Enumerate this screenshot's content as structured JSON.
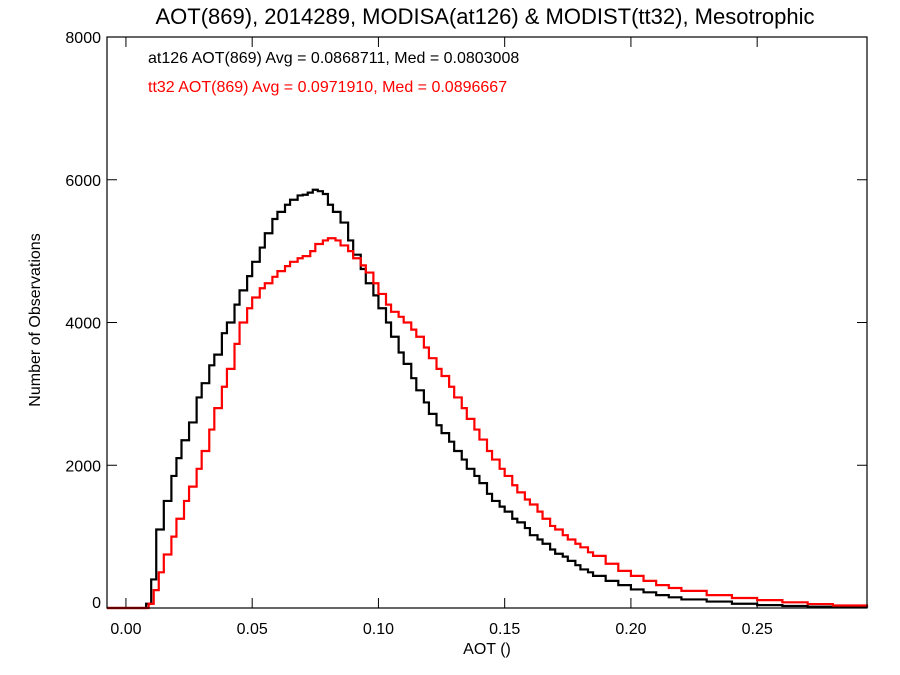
{
  "chart_data": {
    "type": "line",
    "title": "AOT(869), 2014289, MODISA(at126) & MODIST(tt32), Mesotrophic",
    "xlabel": "AOT ()",
    "ylabel": "Number of Observations",
    "xlim": [
      -0.0075,
      0.2935
    ],
    "ylim": [
      0,
      8000
    ],
    "x_ticks": [
      0.0,
      0.05,
      0.1,
      0.15,
      0.2,
      0.25
    ],
    "x_tick_labels": [
      "0.00",
      "0.05",
      "0.10",
      "0.15",
      "0.20",
      "0.25"
    ],
    "y_ticks": [
      0,
      2000,
      4000,
      6000,
      8000
    ],
    "y_tick_labels": [
      "0",
      "2000",
      "4000",
      "6000",
      "8000"
    ],
    "grid": false,
    "legend_position": "top-left",
    "series": [
      {
        "name": "at126",
        "label": "at126 AOT(869) Avg = 0.0868711, Med = 0.0803008",
        "color": "#000000",
        "points": [
          [
            -0.0075,
            0
          ],
          [
            0.005,
            0
          ],
          [
            0.008,
            60
          ],
          [
            0.01,
            400
          ],
          [
            0.012,
            1100
          ],
          [
            0.015,
            1500
          ],
          [
            0.018,
            1850
          ],
          [
            0.02,
            2100
          ],
          [
            0.022,
            2350
          ],
          [
            0.025,
            2600
          ],
          [
            0.028,
            2950
          ],
          [
            0.03,
            3150
          ],
          [
            0.033,
            3400
          ],
          [
            0.035,
            3550
          ],
          [
            0.038,
            3850
          ],
          [
            0.04,
            4000
          ],
          [
            0.043,
            4250
          ],
          [
            0.045,
            4450
          ],
          [
            0.048,
            4650
          ],
          [
            0.05,
            4850
          ],
          [
            0.053,
            5050
          ],
          [
            0.055,
            5250
          ],
          [
            0.058,
            5450
          ],
          [
            0.06,
            5550
          ],
          [
            0.063,
            5650
          ],
          [
            0.065,
            5720
          ],
          [
            0.068,
            5780
          ],
          [
            0.07,
            5790
          ],
          [
            0.072,
            5820
          ],
          [
            0.074,
            5860
          ],
          [
            0.076,
            5840
          ],
          [
            0.078,
            5800
          ],
          [
            0.08,
            5650
          ],
          [
            0.082,
            5550
          ],
          [
            0.085,
            5400
          ],
          [
            0.088,
            5150
          ],
          [
            0.09,
            4950
          ],
          [
            0.093,
            4750
          ],
          [
            0.095,
            4550
          ],
          [
            0.098,
            4380
          ],
          [
            0.1,
            4200
          ],
          [
            0.103,
            4000
          ],
          [
            0.105,
            3800
          ],
          [
            0.108,
            3580
          ],
          [
            0.11,
            3420
          ],
          [
            0.113,
            3220
          ],
          [
            0.115,
            3050
          ],
          [
            0.118,
            2880
          ],
          [
            0.12,
            2720
          ],
          [
            0.123,
            2560
          ],
          [
            0.125,
            2450
          ],
          [
            0.128,
            2330
          ],
          [
            0.13,
            2200
          ],
          [
            0.133,
            2080
          ],
          [
            0.135,
            1950
          ],
          [
            0.138,
            1850
          ],
          [
            0.14,
            1750
          ],
          [
            0.143,
            1600
          ],
          [
            0.145,
            1500
          ],
          [
            0.148,
            1420
          ],
          [
            0.15,
            1350
          ],
          [
            0.153,
            1250
          ],
          [
            0.155,
            1200
          ],
          [
            0.158,
            1120
          ],
          [
            0.16,
            1020
          ],
          [
            0.163,
            960
          ],
          [
            0.165,
            900
          ],
          [
            0.168,
            820
          ],
          [
            0.17,
            760
          ],
          [
            0.173,
            720
          ],
          [
            0.175,
            660
          ],
          [
            0.178,
            600
          ],
          [
            0.18,
            540
          ],
          [
            0.183,
            500
          ],
          [
            0.185,
            450
          ],
          [
            0.19,
            380
          ],
          [
            0.195,
            320
          ],
          [
            0.2,
            260
          ],
          [
            0.205,
            220
          ],
          [
            0.21,
            180
          ],
          [
            0.215,
            150
          ],
          [
            0.22,
            120
          ],
          [
            0.23,
            90
          ],
          [
            0.24,
            60
          ],
          [
            0.25,
            40
          ],
          [
            0.26,
            28
          ],
          [
            0.27,
            18
          ],
          [
            0.28,
            10
          ],
          [
            0.2935,
            5
          ]
        ]
      },
      {
        "name": "tt32",
        "label": "tt32 AOT(869) Avg = 0.0971910, Med = 0.0896667",
        "color": "#ff0000",
        "points": [
          [
            -0.0075,
            0
          ],
          [
            0.007,
            0
          ],
          [
            0.009,
            60
          ],
          [
            0.011,
            250
          ],
          [
            0.013,
            500
          ],
          [
            0.015,
            750
          ],
          [
            0.018,
            1000
          ],
          [
            0.02,
            1250
          ],
          [
            0.023,
            1500
          ],
          [
            0.025,
            1700
          ],
          [
            0.028,
            1950
          ],
          [
            0.03,
            2200
          ],
          [
            0.033,
            2500
          ],
          [
            0.035,
            2800
          ],
          [
            0.038,
            3100
          ],
          [
            0.04,
            3350
          ],
          [
            0.043,
            3700
          ],
          [
            0.045,
            4000
          ],
          [
            0.048,
            4200
          ],
          [
            0.05,
            4350
          ],
          [
            0.053,
            4480
          ],
          [
            0.055,
            4550
          ],
          [
            0.058,
            4640
          ],
          [
            0.06,
            4720
          ],
          [
            0.063,
            4790
          ],
          [
            0.065,
            4850
          ],
          [
            0.068,
            4900
          ],
          [
            0.07,
            4930
          ],
          [
            0.073,
            5000
          ],
          [
            0.075,
            5100
          ],
          [
            0.078,
            5150
          ],
          [
            0.08,
            5180
          ],
          [
            0.083,
            5150
          ],
          [
            0.085,
            5080
          ],
          [
            0.088,
            5000
          ],
          [
            0.09,
            4900
          ],
          [
            0.093,
            4800
          ],
          [
            0.095,
            4700
          ],
          [
            0.098,
            4550
          ],
          [
            0.1,
            4400
          ],
          [
            0.103,
            4250
          ],
          [
            0.105,
            4150
          ],
          [
            0.108,
            4080
          ],
          [
            0.11,
            4000
          ],
          [
            0.113,
            3900
          ],
          [
            0.115,
            3800
          ],
          [
            0.118,
            3650
          ],
          [
            0.12,
            3500
          ],
          [
            0.123,
            3350
          ],
          [
            0.125,
            3250
          ],
          [
            0.128,
            3100
          ],
          [
            0.13,
            2950
          ],
          [
            0.133,
            2800
          ],
          [
            0.135,
            2650
          ],
          [
            0.138,
            2500
          ],
          [
            0.14,
            2360
          ],
          [
            0.143,
            2200
          ],
          [
            0.145,
            2080
          ],
          [
            0.148,
            1950
          ],
          [
            0.15,
            1850
          ],
          [
            0.153,
            1720
          ],
          [
            0.155,
            1620
          ],
          [
            0.158,
            1520
          ],
          [
            0.16,
            1450
          ],
          [
            0.163,
            1350
          ],
          [
            0.165,
            1250
          ],
          [
            0.168,
            1150
          ],
          [
            0.17,
            1100
          ],
          [
            0.173,
            1020
          ],
          [
            0.175,
            960
          ],
          [
            0.178,
            900
          ],
          [
            0.18,
            850
          ],
          [
            0.183,
            780
          ],
          [
            0.185,
            730
          ],
          [
            0.19,
            620
          ],
          [
            0.195,
            520
          ],
          [
            0.2,
            450
          ],
          [
            0.205,
            380
          ],
          [
            0.21,
            320
          ],
          [
            0.215,
            280
          ],
          [
            0.22,
            240
          ],
          [
            0.23,
            180
          ],
          [
            0.24,
            140
          ],
          [
            0.25,
            110
          ],
          [
            0.26,
            80
          ],
          [
            0.27,
            55
          ],
          [
            0.28,
            35
          ],
          [
            0.2935,
            20
          ]
        ]
      }
    ]
  }
}
